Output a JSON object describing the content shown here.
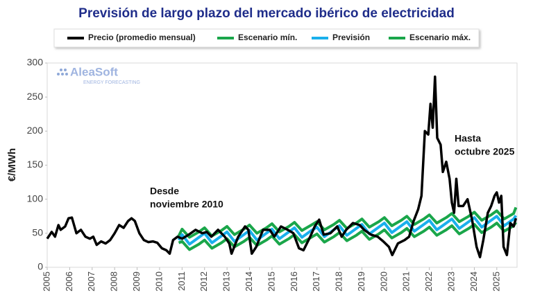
{
  "chart_data": {
    "type": "line",
    "title": "Previsión de largo plazo del mercado ibérico de electricidad",
    "ylabel": "€/MWh",
    "logo": {
      "name": "AleaSoft",
      "tagline": "ENERGY FORECASTING"
    },
    "annotations": [
      [
        "Desde",
        "noviembre 2010"
      ],
      [
        "Hasta",
        "octubre 2025"
      ]
    ],
    "xlim": [
      2005,
      2025.9
    ],
    "xticks": [
      2005,
      2006,
      2007,
      2008,
      2009,
      2010,
      2011,
      2012,
      2013,
      2014,
      2015,
      2016,
      2017,
      2018,
      2019,
      2020,
      2021,
      2022,
      2023,
      2024,
      2025
    ],
    "ylim": [
      0,
      300
    ],
    "yticks": [
      0,
      50,
      100,
      150,
      200,
      250,
      300
    ],
    "series": [
      {
        "name": "Precio (promedio mensual)",
        "color": "#000000",
        "x": [
          2005.0,
          2005.2,
          2005.35,
          2005.5,
          2005.6,
          2005.8,
          2005.95,
          2006.1,
          2006.3,
          2006.5,
          2006.7,
          2006.9,
          2007.05,
          2007.2,
          2007.4,
          2007.6,
          2007.8,
          2008.0,
          2008.2,
          2008.4,
          2008.6,
          2008.75,
          2008.9,
          2009.1,
          2009.3,
          2009.5,
          2009.7,
          2009.9,
          2010.1,
          2010.3,
          2010.45,
          2010.6,
          2010.8,
          2011.0,
          2011.3,
          2011.6,
          2011.9,
          2012.1,
          2012.3,
          2012.6,
          2012.9,
          2013.1,
          2013.2,
          2013.5,
          2013.8,
          2013.95,
          2014.1,
          2014.3,
          2014.6,
          2014.9,
          2015.1,
          2015.4,
          2015.7,
          2015.95,
          2016.2,
          2016.4,
          2016.7,
          2016.9,
          2017.1,
          2017.3,
          2017.6,
          2017.9,
          2018.1,
          2018.3,
          2018.6,
          2018.9,
          2019.1,
          2019.4,
          2019.7,
          2019.95,
          2020.2,
          2020.35,
          2020.6,
          2020.9,
          2021.1,
          2021.3,
          2021.5,
          2021.65,
          2021.8,
          2021.95,
          2022.05,
          2022.15,
          2022.25,
          2022.35,
          2022.5,
          2022.6,
          2022.75,
          2022.9,
          2023.0,
          2023.1,
          2023.2,
          2023.3,
          2023.5,
          2023.7,
          2023.9,
          2024.1,
          2024.25,
          2024.4,
          2024.6,
          2024.75,
          2024.9,
          2025.0,
          2025.1,
          2025.2,
          2025.3,
          2025.45,
          2025.6,
          2025.75,
          2025.85
        ],
        "values": [
          42,
          52,
          45,
          62,
          55,
          60,
          72,
          73,
          50,
          55,
          45,
          42,
          45,
          33,
          38,
          35,
          40,
          50,
          62,
          58,
          68,
          72,
          68,
          50,
          40,
          37,
          38,
          36,
          28,
          25,
          20,
          40,
          45,
          42,
          48,
          55,
          50,
          52,
          45,
          55,
          45,
          35,
          20,
          45,
          60,
          55,
          20,
          30,
          55,
          55,
          45,
          60,
          55,
          50,
          28,
          25,
          45,
          60,
          70,
          48,
          50,
          60,
          45,
          55,
          65,
          62,
          55,
          48,
          45,
          38,
          30,
          18,
          35,
          40,
          45,
          68,
          85,
          105,
          200,
          195,
          240,
          205,
          280,
          190,
          180,
          140,
          155,
          130,
          95,
          80,
          130,
          90,
          90,
          100,
          70,
          30,
          15,
          40,
          80,
          90,
          105,
          110,
          95,
          105,
          30,
          18,
          65,
          60,
          72
        ]
      },
      {
        "name": "Escenario mín.",
        "color": "#1aa64a",
        "x": [
          2010.85,
          2011,
          2011.33,
          2011.75,
          2012,
          2012.33,
          2012.75,
          2013,
          2013.33,
          2013.75,
          2014,
          2014.33,
          2014.75,
          2015,
          2015.33,
          2015.75,
          2016,
          2016.33,
          2016.75,
          2017,
          2017.33,
          2017.75,
          2018,
          2018.33,
          2018.75,
          2019,
          2019.33,
          2019.75,
          2020,
          2020.33,
          2020.75,
          2021,
          2021.33,
          2021.75,
          2022,
          2022.33,
          2022.75,
          2023,
          2023.33,
          2023.75,
          2024,
          2024.33,
          2024.75,
          2025,
          2025.33,
          2025.75,
          2025.85
        ],
        "values": [
          36,
          38,
          26,
          34,
          40,
          28,
          36,
          42,
          30,
          38,
          44,
          32,
          40,
          46,
          34,
          42,
          48,
          36,
          44,
          49,
          37,
          45,
          51,
          39,
          47,
          53,
          41,
          49,
          55,
          43,
          51,
          57,
          45,
          53,
          59,
          47,
          55,
          61,
          49,
          57,
          63,
          51,
          59,
          65,
          53,
          61,
          66
        ]
      },
      {
        "name": "Previsión",
        "color": "#1ab0ec",
        "x": [
          2010.85,
          2011,
          2011.33,
          2011.75,
          2012,
          2012.33,
          2012.75,
          2013,
          2013.33,
          2013.75,
          2014,
          2014.33,
          2014.75,
          2015,
          2015.33,
          2015.75,
          2016,
          2016.33,
          2016.75,
          2017,
          2017.33,
          2017.75,
          2018,
          2018.33,
          2018.75,
          2019,
          2019.33,
          2019.75,
          2020,
          2020.33,
          2020.75,
          2021,
          2021.33,
          2021.75,
          2022,
          2022.33,
          2022.75,
          2023,
          2023.33,
          2023.75,
          2024,
          2024.33,
          2024.75,
          2025,
          2025.33,
          2025.75,
          2025.85
        ],
        "values": [
          40,
          48,
          34,
          44,
          50,
          36,
          46,
          52,
          38,
          48,
          54,
          40,
          50,
          56,
          42,
          52,
          58,
          44,
          54,
          59,
          45,
          55,
          61,
          47,
          57,
          63,
          49,
          59,
          65,
          51,
          61,
          67,
          53,
          63,
          69,
          55,
          65,
          71,
          57,
          67,
          73,
          59,
          69,
          75,
          61,
          71,
          76
        ]
      },
      {
        "name": "Escenario máx.",
        "color": "#1aa64a",
        "x": [
          2010.85,
          2011,
          2011.33,
          2011.75,
          2012,
          2012.33,
          2012.75,
          2013,
          2013.33,
          2013.75,
          2014,
          2014.33,
          2014.75,
          2015,
          2015.33,
          2015.75,
          2016,
          2016.33,
          2016.75,
          2017,
          2017.33,
          2017.75,
          2018,
          2018.33,
          2018.75,
          2019,
          2019.33,
          2019.75,
          2020,
          2020.33,
          2020.75,
          2021,
          2021.33,
          2021.75,
          2022,
          2022.33,
          2022.75,
          2023,
          2023.33,
          2023.75,
          2024,
          2024.33,
          2024.75,
          2025,
          2025.33,
          2025.75,
          2025.85
        ],
        "values": [
          46,
          56,
          44,
          52,
          58,
          46,
          54,
          60,
          48,
          56,
          62,
          50,
          58,
          64,
          52,
          60,
          66,
          54,
          62,
          67,
          55,
          63,
          69,
          57,
          65,
          71,
          59,
          67,
          73,
          61,
          69,
          75,
          63,
          71,
          77,
          65,
          73,
          79,
          67,
          75,
          81,
          69,
          77,
          83,
          71,
          79,
          88
        ]
      }
    ]
  }
}
